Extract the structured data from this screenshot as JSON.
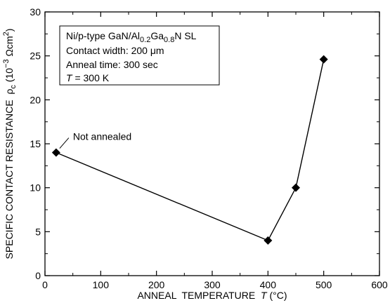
{
  "chart_data": {
    "type": "line",
    "title": "",
    "x": [
      20,
      400,
      450,
      500
    ],
    "values": [
      14,
      4,
      10,
      24.6
    ],
    "xlim": [
      0,
      600
    ],
    "ylim": [
      0,
      30
    ],
    "xticks": [
      "0",
      "100",
      "200",
      "300",
      "400",
      "500",
      "600"
    ],
    "yticks": [
      "0",
      "5",
      "10",
      "15",
      "20",
      "25",
      "30"
    ],
    "xlabel": {
      "main": "ANNEAL  TEMPERATURE  ",
      "var": "T",
      "unit": " (°C)"
    },
    "ylabel": {
      "main": "SPECIFIC CONTACT RESISTANCE  ρ",
      "sub": "c",
      "unit_open": " (10",
      "exp": "−3",
      "unit_mid": " Ωcm",
      "exp2": "2",
      "unit_close": ")"
    },
    "marker": "diamond",
    "grid": false,
    "line_color": "#000000",
    "annotation": {
      "text": "Not annealed",
      "point_index": 0
    },
    "legend_box": {
      "line1": {
        "a": "Ni/p-type GaN/Al",
        "s1": "0.2",
        "b": "Ga",
        "s2": "0.8",
        "c": "N SL"
      },
      "line2": "Contact width: 200 μm",
      "line3": "Anneal time: 300 sec",
      "line4": {
        "var": "T",
        "rest": " = 300 K"
      }
    }
  }
}
